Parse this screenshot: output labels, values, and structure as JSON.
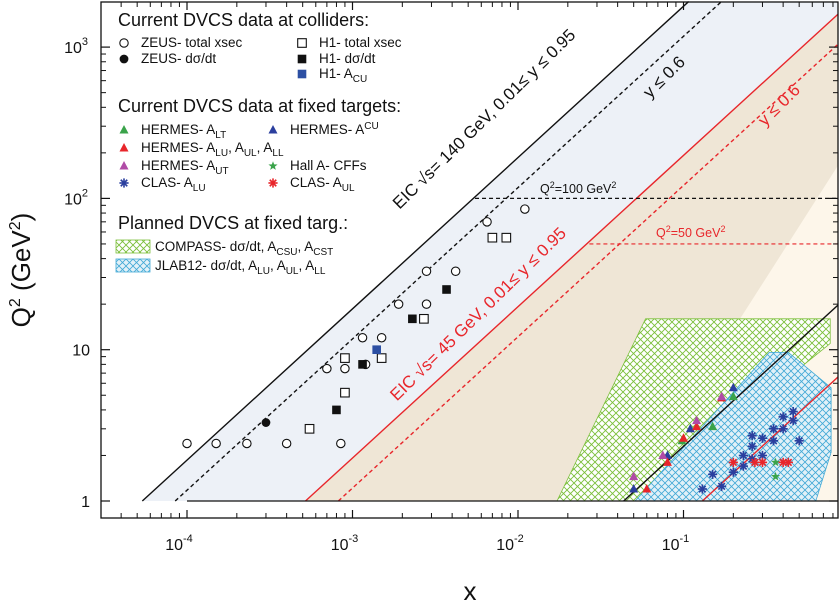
{
  "chart_data": {
    "type": "scatter",
    "xscale": "log",
    "yscale": "log",
    "xlabel": "x",
    "ylabel_main": "Q",
    "ylabel_unit": " (GeV",
    "ylim": [
      1,
      2000
    ],
    "xlim": [
      3e-05,
      0.9
    ],
    "x_ticks": [
      {
        "value": 0.0001,
        "base": "10",
        "exp": "-4"
      },
      {
        "value": 0.001,
        "base": "10",
        "exp": "-3"
      },
      {
        "value": 0.01,
        "base": "10",
        "exp": "-2"
      },
      {
        "value": 0.1,
        "base": "10",
        "exp": "-1"
      }
    ],
    "y_ticks": [
      {
        "value": 1,
        "base": "1",
        "exp": ""
      },
      {
        "value": 10,
        "base": "10",
        "exp": ""
      },
      {
        "value": 100,
        "base": "10",
        "exp": "2"
      },
      {
        "value": 1000,
        "base": "10",
        "exp": "3"
      }
    ],
    "legend_sections": [
      "Current DVCS data at colliders:",
      "Current DVCS data at fixed targets:",
      "Planned DVCS at fixed targ.:"
    ],
    "legend_colliders": [
      {
        "key": "zeus_total",
        "text": "ZEUS- total xsec"
      },
      {
        "key": "zeus_dsdt",
        "text": "ZEUS- dσ/dt"
      },
      {
        "key": "h1_total",
        "text": "H1- total xsec"
      },
      {
        "key": "h1_dsdt",
        "text": "H1- dσ/dt"
      },
      {
        "key": "h1_acu",
        "text": "H1- A",
        "sub": "CU"
      }
    ],
    "legend_fixed": [
      {
        "key": "hermes_alt",
        "text": "HERMES- A",
        "sub": "LT"
      },
      {
        "key": "hermes_acu",
        "text": "HERMES- A",
        "sup": "CU"
      },
      {
        "key": "hermes_alu",
        "text": "HERMES- A",
        "sub": "LU",
        "mid": ", A",
        "sub2": "UL",
        "mid2": ", A",
        "sub3": "LL"
      },
      {
        "key": "hermes_aut",
        "text": "HERMES- A",
        "sub": "UT"
      },
      {
        "key": "halla",
        "text": "Hall A- CFFs"
      },
      {
        "key": "clas_alu",
        "text": "CLAS- A",
        "sub": "LU"
      },
      {
        "key": "clas_aul",
        "text": "CLAS- A",
        "sub": "UL"
      }
    ],
    "legend_planned": [
      {
        "key": "compass",
        "text": "COMPASS- dσ/dt, A",
        "sub": "CSU",
        "mid": ", A",
        "sub2": "CST"
      },
      {
        "key": "jlab12",
        "text": "JLAB12- dσ/dt, A",
        "sub": "LU",
        "mid": ", A",
        "sub2": "UL",
        "mid2": ", A",
        "sub3": "LL"
      }
    ],
    "annotations": {
      "eic140": "EIC √s= 140 GeV, 0.01≤ y ≤ 0.95",
      "eic140_y": "y ≤ 0.6",
      "eic45": "EIC √s= 45 GeV, 0.01≤ y ≤ 0.95",
      "eic45_y": "y ≤ 0.6",
      "q100": "Q",
      "q100_val": "=100 GeV",
      "q50": "Q",
      "q50_val": "=50 GeV"
    },
    "colors": {
      "eic140_region": "#edf1f7",
      "eic45_region": "#efe6d6",
      "eic45_upper_region": "#fdf6ea",
      "red": "#e8262b",
      "black": "#111111",
      "compass": "#7bbf3a",
      "jlab": "#42a9d6",
      "h1_acu": "#2c4fa3",
      "hermes_alt": "#3aa34a",
      "hermes_red": "#e8262b",
      "hermes_purple": "#b04ba6",
      "clas_blue": "#2b3f9e",
      "halla": "#3aa34a"
    },
    "series": [
      {
        "key": "zeus_total",
        "points": [
          [
            0.0001,
            2.4
          ],
          [
            0.00015,
            2.4
          ],
          [
            0.00023,
            2.4
          ],
          [
            0.0004,
            2.4
          ],
          [
            0.00085,
            2.4
          ],
          [
            0.0007,
            7.5
          ],
          [
            0.0009,
            7.5
          ],
          [
            0.00115,
            12
          ],
          [
            0.0012,
            8
          ],
          [
            0.0015,
            12
          ],
          [
            0.0019,
            20
          ],
          [
            0.0028,
            20
          ],
          [
            0.0028,
            33
          ],
          [
            0.0042,
            33
          ],
          [
            0.0065,
            70
          ],
          [
            0.011,
            85
          ]
        ]
      },
      {
        "key": "zeus_dsdt",
        "points": [
          [
            0.0003,
            3.3
          ]
        ]
      },
      {
        "key": "h1_total",
        "points": [
          [
            0.00055,
            3.0
          ],
          [
            0.0009,
            5.2
          ],
          [
            0.0009,
            8.8
          ],
          [
            0.0015,
            8.8
          ],
          [
            0.0027,
            16
          ],
          [
            0.007,
            55
          ],
          [
            0.0085,
            55
          ]
        ]
      },
      {
        "key": "h1_dsdt",
        "points": [
          [
            0.0008,
            4.0
          ],
          [
            0.00115,
            8.0
          ],
          [
            0.0023,
            16
          ],
          [
            0.0037,
            25
          ]
        ]
      },
      {
        "key": "h1_acu",
        "points": [
          [
            0.0014,
            10
          ]
        ]
      },
      {
        "key": "hermes_alt",
        "points": [
          [
            0.098,
            2.5
          ],
          [
            0.15,
            3.1
          ],
          [
            0.2,
            4.9
          ]
        ]
      },
      {
        "key": "hermes_acu",
        "points": [
          [
            0.05,
            1.2
          ],
          [
            0.08,
            2.0
          ],
          [
            0.11,
            3.0
          ],
          [
            0.2,
            5.6
          ]
        ]
      },
      {
        "key": "hermes_alu",
        "points": [
          [
            0.06,
            1.2
          ],
          [
            0.08,
            1.8
          ],
          [
            0.1,
            2.6
          ],
          [
            0.12,
            3.1
          ],
          [
            0.17,
            4.8
          ]
        ]
      },
      {
        "key": "hermes_aut",
        "points": [
          [
            0.05,
            1.45
          ],
          [
            0.075,
            2.0
          ],
          [
            0.12,
            3.4
          ],
          [
            0.17,
            4.9
          ]
        ]
      },
      {
        "key": "halla",
        "points": [
          [
            0.36,
            1.8
          ],
          [
            0.36,
            1.45
          ]
        ]
      },
      {
        "key": "clas_alu",
        "points": [
          [
            0.13,
            1.2
          ],
          [
            0.17,
            1.25
          ],
          [
            0.15,
            1.5
          ],
          [
            0.2,
            1.55
          ],
          [
            0.23,
            1.7
          ],
          [
            0.26,
            1.9
          ],
          [
            0.23,
            2.0
          ],
          [
            0.3,
            2.0
          ],
          [
            0.26,
            2.3
          ],
          [
            0.35,
            2.5
          ],
          [
            0.3,
            2.6
          ],
          [
            0.26,
            2.7
          ],
          [
            0.35,
            3.0
          ],
          [
            0.4,
            3.6
          ],
          [
            0.46,
            3.4
          ],
          [
            0.46,
            3.9
          ],
          [
            0.4,
            3.0
          ],
          [
            0.5,
            2.5
          ]
        ]
      },
      {
        "key": "clas_aul",
        "points": [
          [
            0.2,
            1.8
          ],
          [
            0.27,
            1.8
          ],
          [
            0.3,
            1.8
          ],
          [
            0.4,
            1.8
          ],
          [
            0.43,
            1.8
          ]
        ]
      }
    ]
  }
}
